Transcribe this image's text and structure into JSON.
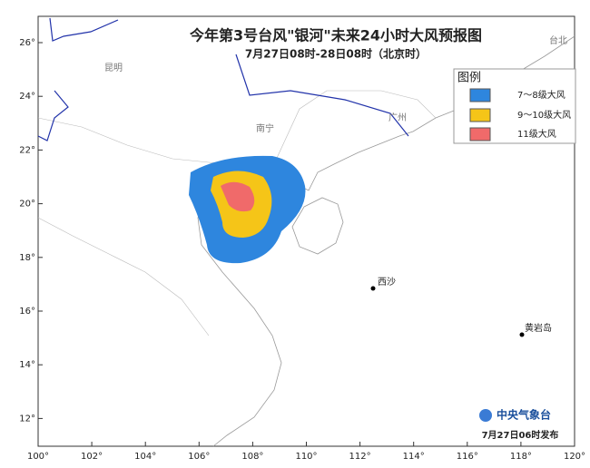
{
  "header": {
    "title": "今年第3号台风\"银河\"未来24小时大风预报图",
    "subtitle": "7月27日08时-28日08时（北京时）"
  },
  "legend": {
    "title": "图例",
    "items": [
      "7～8级大风",
      "9～10级大风",
      "11级大风"
    ]
  },
  "places": [
    "昆明",
    "南宁",
    "广州",
    "西沙",
    "黄岩岛",
    "台北"
  ],
  "axes": {
    "lon_labels": [
      "100°",
      "102°",
      "104°",
      "106°",
      "108°",
      "110°",
      "112°",
      "114°",
      "116°",
      "118°",
      "120°"
    ],
    "lat_labels": [
      "26°",
      "24°",
      "22°",
      "20°",
      "18°",
      "16°",
      "14°",
      "12°"
    ]
  },
  "footer": {
    "agency": "中央气象台",
    "issued": "7月27日06时发布"
  }
}
